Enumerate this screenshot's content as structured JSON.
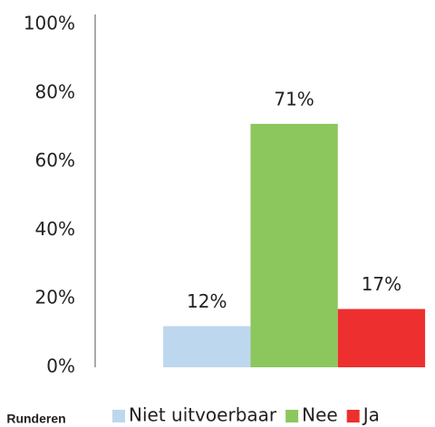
{
  "chart_data": {
    "type": "bar",
    "categories": [
      "Runderen"
    ],
    "series": [
      {
        "name": "Niet uitvoerbaar",
        "color": "#bdd7ee",
        "values": [
          12
        ],
        "value_labels": [
          "12%"
        ]
      },
      {
        "name": "Nee",
        "color": "#8cc75e",
        "values": [
          71
        ],
        "value_labels": [
          "71%"
        ]
      },
      {
        "name": "Ja",
        "color": "#ee2f2f",
        "values": [
          17
        ],
        "value_labels": [
          "17%"
        ]
      }
    ],
    "ylim": [
      0,
      100
    ],
    "yticks": [
      {
        "value": 0,
        "label": "0%"
      },
      {
        "value": 20,
        "label": "20%"
      },
      {
        "value": 40,
        "label": "40%"
      },
      {
        "value": 60,
        "label": "60%"
      },
      {
        "value": 80,
        "label": "80%"
      },
      {
        "value": 100,
        "label": "100%"
      }
    ],
    "grid": false,
    "legend": "bottom"
  }
}
